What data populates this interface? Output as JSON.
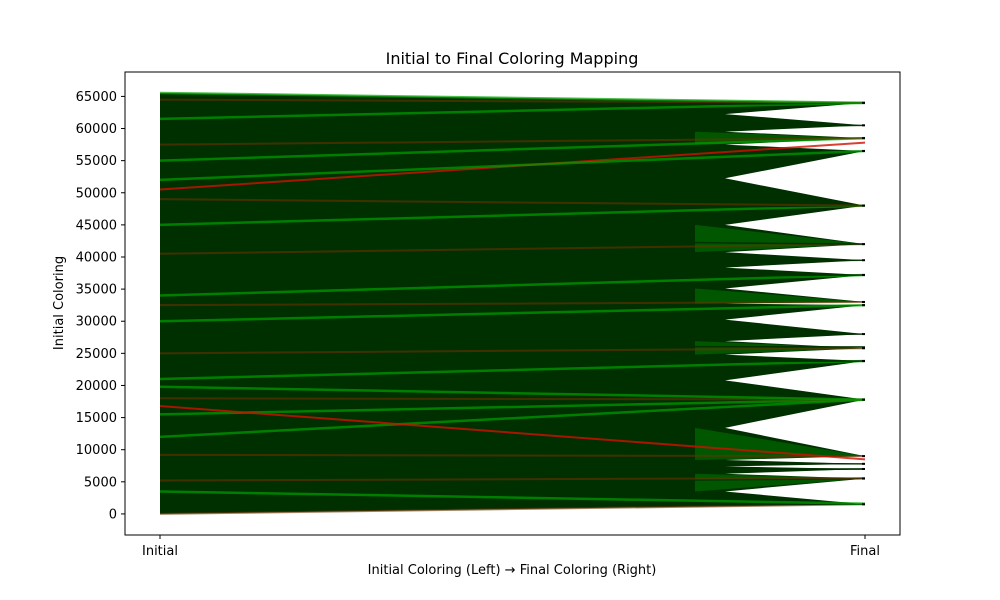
{
  "chart_data": {
    "type": "line",
    "title": "Initial to Final Coloring Mapping",
    "xlabel": "Initial Coloring (Left) → Final Coloring (Right)",
    "ylabel": "Initial Coloring",
    "categories": [
      "Initial",
      "Final"
    ],
    "ylim": [
      -3280,
      68800
    ],
    "yticks": [
      0,
      5000,
      10000,
      15000,
      20000,
      25000,
      30000,
      35000,
      40000,
      45000,
      50000,
      55000,
      60000,
      65000
    ],
    "grid": false,
    "legend": "none",
    "colors": {
      "dominant": "#003000",
      "changed_bright": "#00a000",
      "changed_red": "#d01000",
      "changed_pink": "#f0a0a0",
      "brown": "#6a3000"
    },
    "initial_range": [
      0,
      65535
    ],
    "final_colors": [
      1500,
      5500,
      7000,
      7800,
      9000,
      17800,
      23800,
      25800,
      28000,
      32500,
      33000,
      37200,
      39500,
      42000,
      48000,
      56500,
      58500,
      60500,
      64000
    ],
    "series": [
      {
        "values": [
          0,
          1500
        ]
      },
      {
        "values": [
          1800,
          1500
        ]
      },
      {
        "values": [
          3500,
          1600
        ]
      },
      {
        "values": [
          4600,
          5500
        ]
      },
      {
        "values": [
          5200,
          5600
        ]
      },
      {
        "values": [
          6000,
          7000
        ]
      },
      {
        "values": [
          7200,
          7000
        ]
      },
      {
        "values": [
          8200,
          7800
        ]
      },
      {
        "values": [
          9200,
          9000
        ]
      },
      {
        "values": [
          12000,
          17800
        ]
      },
      {
        "values": [
          15500,
          17800
        ]
      },
      {
        "values": [
          16800,
          8500
        ]
      },
      {
        "values": [
          18000,
          17800
        ]
      },
      {
        "values": [
          19800,
          17800
        ]
      },
      {
        "values": [
          21000,
          23800
        ]
      },
      {
        "values": [
          23500,
          23800
        ]
      },
      {
        "values": [
          25000,
          25800
        ]
      },
      {
        "values": [
          26200,
          26000
        ]
      },
      {
        "values": [
          28000,
          28000
        ]
      },
      {
        "values": [
          30000,
          32500
        ]
      },
      {
        "values": [
          32500,
          33000
        ]
      },
      {
        "values": [
          34000,
          37200
        ]
      },
      {
        "values": [
          36500,
          37200
        ]
      },
      {
        "values": [
          38500,
          39500
        ]
      },
      {
        "values": [
          40500,
          42000
        ]
      },
      {
        "values": [
          43000,
          42000
        ]
      },
      {
        "values": [
          45000,
          48000
        ]
      },
      {
        "values": [
          47000,
          48000
        ]
      },
      {
        "values": [
          49000,
          48000
        ]
      },
      {
        "values": [
          50500,
          57800
        ]
      },
      {
        "values": [
          52000,
          56500
        ]
      },
      {
        "values": [
          55000,
          58500
        ]
      },
      {
        "values": [
          57500,
          58500
        ]
      },
      {
        "values": [
          59500,
          60500
        ]
      },
      {
        "values": [
          61500,
          64000
        ]
      },
      {
        "values": [
          63000,
          64000
        ]
      },
      {
        "values": [
          64500,
          64000
        ]
      },
      {
        "values": [
          65535,
          64000
        ]
      }
    ]
  }
}
